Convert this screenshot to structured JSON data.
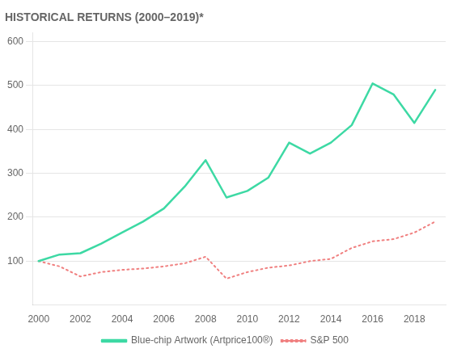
{
  "chart_data": {
    "type": "line",
    "title": "HISTORICAL RETURNS (2000–2019)*",
    "x": [
      2000,
      2001,
      2002,
      2003,
      2004,
      2005,
      2006,
      2007,
      2008,
      2009,
      2010,
      2011,
      2012,
      2013,
      2014,
      2015,
      2016,
      2017,
      2018,
      2019
    ],
    "series": [
      {
        "name": "Blue-chip Artwork (Artprice100®)",
        "color": "#3dd9a4",
        "line_style": "solid",
        "values": [
          100,
          115,
          118,
          140,
          165,
          190,
          220,
          270,
          330,
          245,
          260,
          290,
          370,
          345,
          370,
          410,
          505,
          480,
          415,
          490
        ]
      },
      {
        "name": "S&P 500",
        "color": "#f08080",
        "line_style": "dotted",
        "values": [
          100,
          88,
          65,
          75,
          80,
          83,
          88,
          95,
          110,
          60,
          75,
          85,
          90,
          100,
          105,
          130,
          145,
          150,
          165,
          190
        ]
      }
    ],
    "xlim": [
      1999.7,
      2019.5
    ],
    "xticks": [
      2000,
      2002,
      2004,
      2006,
      2008,
      2010,
      2012,
      2014,
      2016,
      2018
    ],
    "ylim": [
      0,
      620
    ],
    "yticks": [
      100,
      200,
      300,
      400,
      500,
      600
    ],
    "grid": "y",
    "legend": "bottom"
  }
}
